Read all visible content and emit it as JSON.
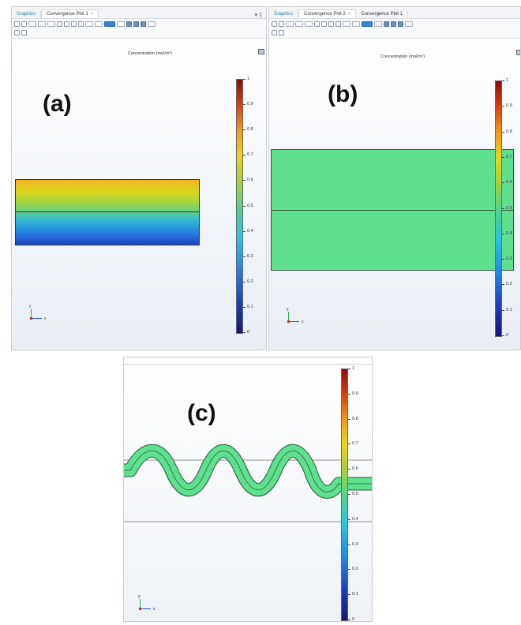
{
  "panels": {
    "a": {
      "label": "(a)",
      "tabs": [
        {
          "label": "Graphics",
          "active": false
        },
        {
          "label": "Convergence Plot 1",
          "active": true,
          "closable": true
        }
      ],
      "window_controls": "▾ ‡",
      "plot_title": "Concentration (mol/m³)",
      "colorbar_ticks": [
        "1",
        "0.9",
        "0.8",
        "0.7",
        "0.6",
        "0.5",
        "0.4",
        "0.3",
        "0.2",
        "0.1",
        "0"
      ],
      "axis_y": "y",
      "axis_x": "x"
    },
    "b": {
      "label": "(b)",
      "tabs": [
        {
          "label": "Graphics",
          "active": false
        },
        {
          "label": "Convergence Plot 2",
          "active": true,
          "closable": true
        },
        {
          "label": "Convergence Plot 1",
          "active": false,
          "closable": false
        }
      ],
      "plot_title": "Concentration (mol/m³)",
      "colorbar_ticks": [
        "1",
        "0.9",
        "0.8",
        "0.7",
        "0.6",
        "0.5",
        "0.4",
        "0.3",
        "0.2",
        "0.1",
        "0"
      ],
      "axis_y": "y",
      "axis_x": "x"
    },
    "c": {
      "label": "(c)",
      "colorbar_ticks": [
        "1",
        "0.9",
        "0.8",
        "0.7",
        "0.6",
        "0.5",
        "0.4",
        "0.3",
        "0.2",
        "0.1",
        "0"
      ],
      "axis_y": "y",
      "axis_x": "x"
    }
  },
  "colors": {
    "uniform_fill": "#5ee08e",
    "outline": "#2b5a3a",
    "accent_tab": "#2a7ab8"
  },
  "icons": [
    "zoom-in-icon",
    "zoom-out-icon",
    "zoom-box-icon",
    "zoom-extents-icon",
    "transparency-icon",
    "rotate-icon",
    "render-icon",
    "grid-icon",
    "view-icon",
    "camera-icon",
    "print-icon"
  ]
}
